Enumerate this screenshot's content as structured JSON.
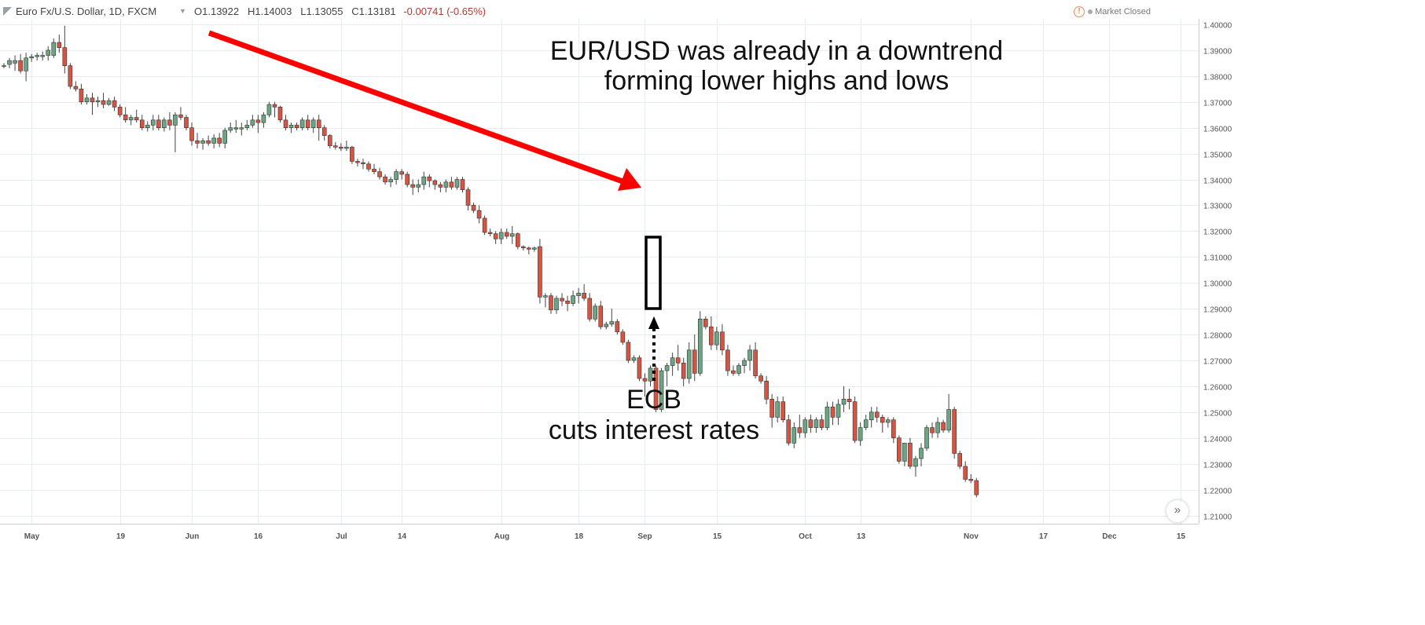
{
  "header": {
    "symbol_title": "Euro Fx/U.S. Dollar, 1D, FXCM",
    "dropdown_icon": "chevron-down-icon",
    "ohlc": {
      "o_label": "O",
      "o": "1.13922",
      "h_label": "H",
      "h": "1.14003",
      "l_label": "L",
      "l": "1.13055",
      "c_label": "C",
      "c": "1.13181",
      "change": "-0.00741 (-0.65%)"
    },
    "market_status": "Market Closed",
    "status_icon": "warning-icon"
  },
  "annotations": {
    "trend_text_line1": "EUR/USD was already in a downtrend",
    "trend_text_line2": "forming lower highs and lows",
    "event_line1": "ECB",
    "event_line2": "cuts interest rates"
  },
  "colors": {
    "up": "#6ba583",
    "down": "#d75442",
    "arrow": "#ff0000",
    "grid": "#e9ecef"
  },
  "chart_data": {
    "type": "candlestick",
    "symbol": "EUR/USD",
    "interval": "1D",
    "ylim": [
      1.205,
      1.4
    ],
    "y_ticks": [
      "1.40000",
      "1.39000",
      "1.38000",
      "1.37000",
      "1.36000",
      "1.35000",
      "1.34000",
      "1.33000",
      "1.32000",
      "1.31000",
      "1.30000",
      "1.29000",
      "1.28000",
      "1.27000",
      "1.26000",
      "1.25000",
      "1.24000",
      "1.23000",
      "1.22000",
      "1.21000"
    ],
    "x_ticks": [
      {
        "label": "May",
        "index": 5
      },
      {
        "label": "19",
        "index": 21
      },
      {
        "label": "Jun",
        "index": 34
      },
      {
        "label": "16",
        "index": 46
      },
      {
        "label": "Jul",
        "index": 61
      },
      {
        "label": "14",
        "index": 72
      },
      {
        "label": "Aug",
        "index": 90
      },
      {
        "label": "18",
        "index": 104
      },
      {
        "label": "Sep",
        "index": 116
      },
      {
        "label": "15",
        "index": 129
      },
      {
        "label": "Oct",
        "index": 145
      },
      {
        "label": "13",
        "index": 155
      },
      {
        "label": "Nov",
        "index": 175
      },
      {
        "label": "17",
        "index": 188
      },
      {
        "label": "Dec",
        "index": 200
      },
      {
        "label": "15",
        "index": 213
      }
    ],
    "ohlc": [
      [
        1.384,
        1.385,
        1.383,
        1.384
      ],
      [
        1.3845,
        1.387,
        1.383,
        1.386
      ],
      [
        1.385,
        1.388,
        1.382,
        1.386
      ],
      [
        1.386,
        1.3885,
        1.381,
        1.382
      ],
      [
        1.382,
        1.389,
        1.378,
        1.387
      ],
      [
        1.387,
        1.3885,
        1.3855,
        1.3875
      ],
      [
        1.3875,
        1.389,
        1.386,
        1.388
      ],
      [
        1.3875,
        1.3895,
        1.386,
        1.388
      ],
      [
        1.388,
        1.3915,
        1.386,
        1.39
      ],
      [
        1.388,
        1.3945,
        1.387,
        1.393
      ],
      [
        1.393,
        1.396,
        1.389,
        1.391
      ],
      [
        1.391,
        1.3995,
        1.381,
        1.384
      ],
      [
        1.384,
        1.385,
        1.375,
        1.376
      ],
      [
        1.376,
        1.378,
        1.374,
        1.375
      ],
      [
        1.375,
        1.377,
        1.369,
        1.37
      ],
      [
        1.37,
        1.373,
        1.369,
        1.3715
      ],
      [
        1.3715,
        1.3735,
        1.365,
        1.37
      ],
      [
        1.37,
        1.372,
        1.368,
        1.3705
      ],
      [
        1.3705,
        1.3735,
        1.3675,
        1.369
      ],
      [
        1.369,
        1.3715,
        1.3685,
        1.3705
      ],
      [
        1.3705,
        1.372,
        1.3665,
        1.368
      ],
      [
        1.368,
        1.369,
        1.364,
        1.365
      ],
      [
        1.365,
        1.368,
        1.362,
        1.363
      ],
      [
        1.363,
        1.365,
        1.361,
        1.364
      ],
      [
        1.364,
        1.367,
        1.362,
        1.363
      ],
      [
        1.363,
        1.365,
        1.359,
        1.36
      ],
      [
        1.36,
        1.3625,
        1.3585,
        1.361
      ],
      [
        1.361,
        1.365,
        1.359,
        1.363
      ],
      [
        1.363,
        1.365,
        1.359,
        1.36
      ],
      [
        1.36,
        1.364,
        1.3585,
        1.363
      ],
      [
        1.363,
        1.366,
        1.359,
        1.361
      ],
      [
        1.361,
        1.366,
        1.3505,
        1.365
      ],
      [
        1.365,
        1.368,
        1.363,
        1.364
      ],
      [
        1.364,
        1.365,
        1.359,
        1.36
      ],
      [
        1.36,
        1.362,
        1.353,
        1.355
      ],
      [
        1.355,
        1.358,
        1.352,
        1.354
      ],
      [
        1.354,
        1.356,
        1.3515,
        1.355
      ],
      [
        1.355,
        1.357,
        1.353,
        1.354
      ],
      [
        1.354,
        1.3575,
        1.352,
        1.356
      ],
      [
        1.356,
        1.358,
        1.3525,
        1.354
      ],
      [
        1.354,
        1.36,
        1.352,
        1.359
      ],
      [
        1.359,
        1.362,
        1.358,
        1.36
      ],
      [
        1.36,
        1.363,
        1.358,
        1.3595
      ],
      [
        1.3595,
        1.362,
        1.357,
        1.36
      ],
      [
        1.36,
        1.363,
        1.359,
        1.361
      ],
      [
        1.361,
        1.365,
        1.36,
        1.363
      ],
      [
        1.363,
        1.365,
        1.358,
        1.362
      ],
      [
        1.362,
        1.366,
        1.36,
        1.365
      ],
      [
        1.365,
        1.37,
        1.364,
        1.369
      ],
      [
        1.369,
        1.37,
        1.364,
        1.368
      ],
      [
        1.368,
        1.3685,
        1.362,
        1.363
      ],
      [
        1.363,
        1.365,
        1.359,
        1.36
      ],
      [
        1.36,
        1.362,
        1.358,
        1.361
      ],
      [
        1.361,
        1.362,
        1.359,
        1.36
      ],
      [
        1.36,
        1.364,
        1.359,
        1.363
      ],
      [
        1.363,
        1.365,
        1.359,
        1.36
      ],
      [
        1.36,
        1.364,
        1.358,
        1.363
      ],
      [
        1.363,
        1.365,
        1.355,
        1.36
      ],
      [
        1.36,
        1.361,
        1.355,
        1.357
      ],
      [
        1.357,
        1.3575,
        1.352,
        1.353
      ],
      [
        1.353,
        1.3545,
        1.3515,
        1.3525
      ],
      [
        1.3525,
        1.354,
        1.351,
        1.352
      ],
      [
        1.352,
        1.355,
        1.351,
        1.3525
      ],
      [
        1.3525,
        1.353,
        1.346,
        1.347
      ],
      [
        1.347,
        1.348,
        1.345,
        1.3465
      ],
      [
        1.3465,
        1.348,
        1.344,
        1.346
      ],
      [
        1.346,
        1.347,
        1.343,
        1.344
      ],
      [
        1.344,
        1.346,
        1.342,
        1.343
      ],
      [
        1.343,
        1.3445,
        1.34,
        1.341
      ],
      [
        1.341,
        1.342,
        1.338,
        1.339
      ],
      [
        1.339,
        1.341,
        1.337,
        1.34
      ],
      [
        1.34,
        1.344,
        1.338,
        1.343
      ],
      [
        1.343,
        1.344,
        1.34,
        1.342
      ],
      [
        1.342,
        1.343,
        1.337,
        1.338
      ],
      [
        1.338,
        1.34,
        1.334,
        1.337
      ],
      [
        1.337,
        1.34,
        1.335,
        1.338
      ],
      [
        1.338,
        1.343,
        1.336,
        1.341
      ],
      [
        1.341,
        1.342,
        1.337,
        1.3395
      ],
      [
        1.3395,
        1.34,
        1.336,
        1.338
      ],
      [
        1.338,
        1.339,
        1.335,
        1.337
      ],
      [
        1.337,
        1.34,
        1.335,
        1.339
      ],
      [
        1.339,
        1.341,
        1.336,
        1.337
      ],
      [
        1.337,
        1.341,
        1.336,
        1.34
      ],
      [
        1.34,
        1.341,
        1.335,
        1.336
      ],
      [
        1.336,
        1.337,
        1.328,
        1.33
      ],
      [
        1.33,
        1.331,
        1.327,
        1.328
      ],
      [
        1.328,
        1.33,
        1.323,
        1.325
      ],
      [
        1.325,
        1.326,
        1.3185,
        1.3195
      ],
      [
        1.3195,
        1.321,
        1.318,
        1.319
      ],
      [
        1.319,
        1.32,
        1.315,
        1.317
      ],
      [
        1.317,
        1.321,
        1.315,
        1.3195
      ],
      [
        1.3195,
        1.321,
        1.317,
        1.318
      ],
      [
        1.318,
        1.322,
        1.315,
        1.319
      ],
      [
        1.319,
        1.3195,
        1.313,
        1.314
      ],
      [
        1.314,
        1.3145,
        1.3125,
        1.3135
      ],
      [
        1.3135,
        1.314,
        1.311,
        1.313
      ],
      [
        1.313,
        1.314,
        1.312,
        1.3135
      ],
      [
        1.314,
        1.317,
        1.292,
        1.2945
      ],
      [
        1.2945,
        1.296,
        1.2905,
        1.295
      ],
      [
        1.295,
        1.296,
        1.288,
        1.2895
      ],
      [
        1.2895,
        1.295,
        1.288,
        1.294
      ],
      [
        1.294,
        1.296,
        1.291,
        1.293
      ],
      [
        1.293,
        1.295,
        1.289,
        1.292
      ],
      [
        1.292,
        1.297,
        1.291,
        1.295
      ],
      [
        1.295,
        1.298,
        1.292,
        1.296
      ],
      [
        1.296,
        1.2995,
        1.293,
        1.294
      ],
      [
        1.294,
        1.296,
        1.285,
        1.286
      ],
      [
        1.286,
        1.292,
        1.285,
        1.291
      ],
      [
        1.291,
        1.293,
        1.282,
        1.283
      ],
      [
        1.283,
        1.285,
        1.282,
        1.284
      ],
      [
        1.284,
        1.29,
        1.283,
        1.285
      ],
      [
        1.285,
        1.286,
        1.28,
        1.281
      ],
      [
        1.281,
        1.282,
        1.276,
        1.277
      ],
      [
        1.277,
        1.278,
        1.269,
        1.27
      ],
      [
        1.27,
        1.272,
        1.269,
        1.271
      ],
      [
        1.271,
        1.272,
        1.262,
        1.263
      ],
      [
        1.263,
        1.265,
        1.256,
        1.262
      ],
      [
        1.262,
        1.268,
        1.26,
        1.267
      ],
      [
        1.267,
        1.268,
        1.25,
        1.251
      ],
      [
        1.251,
        1.267,
        1.25,
        1.266
      ],
      [
        1.266,
        1.269,
        1.26,
        1.268
      ],
      [
        1.268,
        1.273,
        1.264,
        1.271
      ],
      [
        1.271,
        1.276,
        1.266,
        1.269
      ],
      [
        1.269,
        1.271,
        1.26,
        1.263
      ],
      [
        1.263,
        1.277,
        1.261,
        1.274
      ],
      [
        1.274,
        1.28,
        1.262,
        1.265
      ],
      [
        1.265,
        1.289,
        1.264,
        1.286
      ],
      [
        1.286,
        1.287,
        1.282,
        1.283
      ],
      [
        1.283,
        1.287,
        1.274,
        1.276
      ],
      [
        1.276,
        1.283,
        1.274,
        1.281
      ],
      [
        1.281,
        1.284,
        1.272,
        1.274
      ],
      [
        1.274,
        1.276,
        1.264,
        1.266
      ],
      [
        1.266,
        1.268,
        1.264,
        1.265
      ],
      [
        1.265,
        1.269,
        1.264,
        1.268
      ],
      [
        1.268,
        1.271,
        1.265,
        1.27
      ],
      [
        1.27,
        1.276,
        1.266,
        1.274
      ],
      [
        1.274,
        1.277,
        1.263,
        1.264
      ],
      [
        1.264,
        1.265,
        1.261,
        1.262
      ],
      [
        1.262,
        1.264,
        1.253,
        1.255
      ],
      [
        1.255,
        1.257,
        1.244,
        1.248
      ],
      [
        1.248,
        1.256,
        1.246,
        1.254
      ],
      [
        1.254,
        1.256,
        1.246,
        1.247
      ],
      [
        1.247,
        1.249,
        1.237,
        1.238
      ],
      [
        1.238,
        1.246,
        1.236,
        1.244
      ],
      [
        1.244,
        1.249,
        1.24,
        1.242
      ],
      [
        1.242,
        1.248,
        1.24,
        1.247
      ],
      [
        1.247,
        1.249,
        1.242,
        1.244
      ],
      [
        1.244,
        1.248,
        1.242,
        1.247
      ],
      [
        1.247,
        1.249,
        1.243,
        1.244
      ],
      [
        1.244,
        1.254,
        1.243,
        1.252
      ],
      [
        1.252,
        1.254,
        1.245,
        1.248
      ],
      [
        1.248,
        1.255,
        1.245,
        1.253
      ],
      [
        1.253,
        1.26,
        1.25,
        1.255
      ],
      [
        1.255,
        1.259,
        1.251,
        1.254
      ],
      [
        1.254,
        1.256,
        1.238,
        1.239
      ],
      [
        1.239,
        1.246,
        1.237,
        1.244
      ],
      [
        1.244,
        1.249,
        1.243,
        1.247
      ],
      [
        1.247,
        1.252,
        1.244,
        1.25
      ],
      [
        1.25,
        1.252,
        1.246,
        1.248
      ],
      [
        1.248,
        1.249,
        1.242,
        1.246
      ],
      [
        1.246,
        1.248,
        1.244,
        1.247
      ],
      [
        1.247,
        1.248,
        1.238,
        1.24
      ],
      [
        1.24,
        1.241,
        1.23,
        1.231
      ],
      [
        1.231,
        1.238,
        1.229,
        1.238
      ],
      [
        1.238,
        1.24,
        1.228,
        1.229
      ],
      [
        1.229,
        1.233,
        1.225,
        1.232
      ],
      [
        1.232,
        1.238,
        1.229,
        1.236
      ],
      [
        1.236,
        1.245,
        1.235,
        1.244
      ],
      [
        1.244,
        1.246,
        1.24,
        1.242
      ],
      [
        1.242,
        1.248,
        1.24,
        1.246
      ],
      [
        1.246,
        1.247,
        1.242,
        1.243
      ],
      [
        1.243,
        1.257,
        1.242,
        1.251
      ],
      [
        1.251,
        1.252,
        1.232,
        1.234
      ],
      [
        1.234,
        1.235,
        1.228,
        1.229
      ],
      [
        1.229,
        1.231,
        1.223,
        1.224
      ],
      [
        1.224,
        1.226,
        1.2225,
        1.2235
      ],
      [
        1.2235,
        1.2245,
        1.217,
        1.218
      ]
    ]
  }
}
